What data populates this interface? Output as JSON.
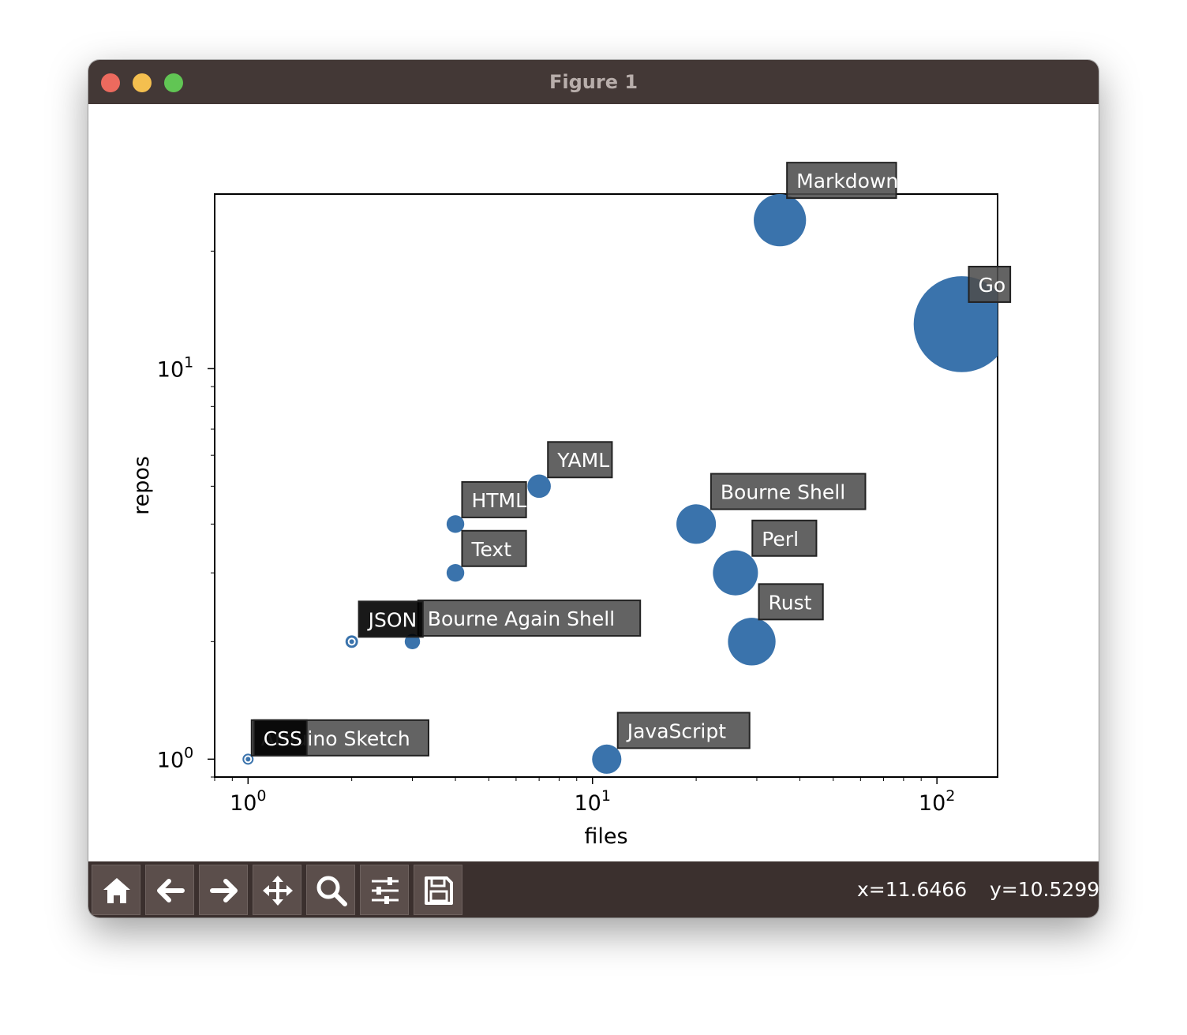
{
  "window": {
    "title": "Figure 1"
  },
  "toolbar": {
    "buttons": [
      "home-icon",
      "back-arrow-icon",
      "forward-arrow-icon",
      "move-icon",
      "zoom-icon",
      "configure-subplots-icon",
      "save-icon"
    ],
    "x_readout": "x=11.6466",
    "y_readout": "y=10.5299"
  },
  "chart_data": {
    "type": "scatter",
    "xlabel": "files",
    "ylabel": "repos",
    "xscale": "log",
    "yscale": "log",
    "xlim": [
      0.8,
      150
    ],
    "ylim": [
      0.9,
      28
    ],
    "x_ticks": [
      {
        "base": "10",
        "exp": "0"
      },
      {
        "base": "10",
        "exp": "1"
      },
      {
        "base": "10",
        "exp": "2"
      }
    ],
    "y_ticks": [
      {
        "base": "10",
        "exp": "0"
      },
      {
        "base": "10",
        "exp": "1"
      }
    ],
    "marker_color": "#3a73ac",
    "label_box_color": "#4d4d4d",
    "points": [
      {
        "label": "Markdown",
        "files": 35,
        "repos": 24
      },
      {
        "label": "Go",
        "files": 118,
        "repos": 13
      },
      {
        "label": "YAML",
        "files": 7,
        "repos": 5
      },
      {
        "label": "HTML",
        "files": 4,
        "repos": 4
      },
      {
        "label": "Bourne Shell",
        "files": 20,
        "repos": 4
      },
      {
        "label": "Text",
        "files": 4,
        "repos": 3
      },
      {
        "label": "Perl",
        "files": 26,
        "repos": 3
      },
      {
        "label": "Bourne Again Shell",
        "files": 3,
        "repos": 2
      },
      {
        "label": "JSON",
        "files": 2,
        "repos": 2
      },
      {
        "label": "Rust",
        "files": 29,
        "repos": 2
      },
      {
        "label": "Arduino Sketch",
        "files": 1,
        "repos": 1
      },
      {
        "label": "CSS",
        "files": 1,
        "repos": 1
      },
      {
        "label": "JavaScript",
        "files": 11,
        "repos": 1
      }
    ]
  }
}
